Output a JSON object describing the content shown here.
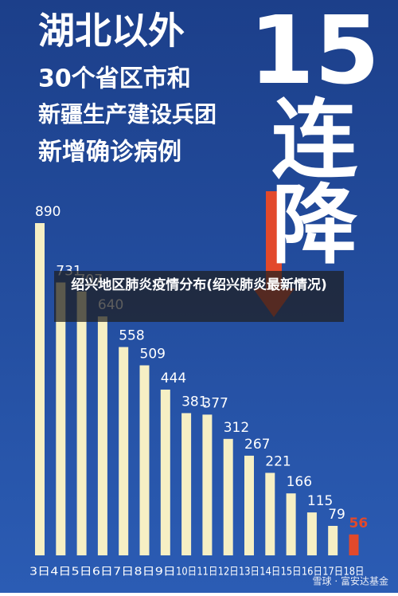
{
  "headline": [
    "湖北以外",
    "30个省区市和",
    "新疆生产建设兵团",
    "新增确诊病例"
  ],
  "badge": [
    "15",
    "连",
    "降"
  ],
  "overlay": "绍兴地区肺炎疫情分布(绍兴肺炎最新情况)",
  "watermark": "雪球 · 富安达基金",
  "chart_data": {
    "type": "bar",
    "categories": [
      "3日",
      "4日",
      "5日",
      "6日",
      "7日",
      "8日",
      "9日",
      "10日",
      "11日",
      "12日",
      "13日",
      "14日",
      "15日",
      "16日",
      "17日",
      "18日"
    ],
    "values": [
      890,
      731,
      707,
      640,
      558,
      509,
      444,
      381,
      377,
      312,
      267,
      221,
      166,
      115,
      79,
      56
    ],
    "color": "#f6efc4",
    "highlight_color": "#e2492b",
    "highlight_index": 15,
    "ylim": [
      0,
      890
    ]
  }
}
